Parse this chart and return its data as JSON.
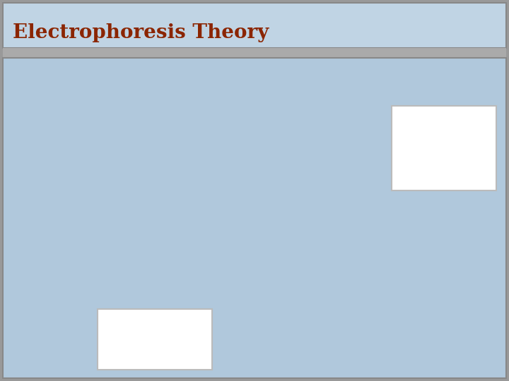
{
  "title": "Electrophoresis Theory",
  "title_color": "#8B2500",
  "title_fontsize": 20,
  "bg_outer": "#999999",
  "bg_title": "#c0d4e4",
  "bg_content": "#b0c8dc",
  "dark_blue": "#1a1a6e",
  "orange": "#c87820",
  "bullet_color": "#c87820",
  "gray_band_color": "#aaaaaa"
}
